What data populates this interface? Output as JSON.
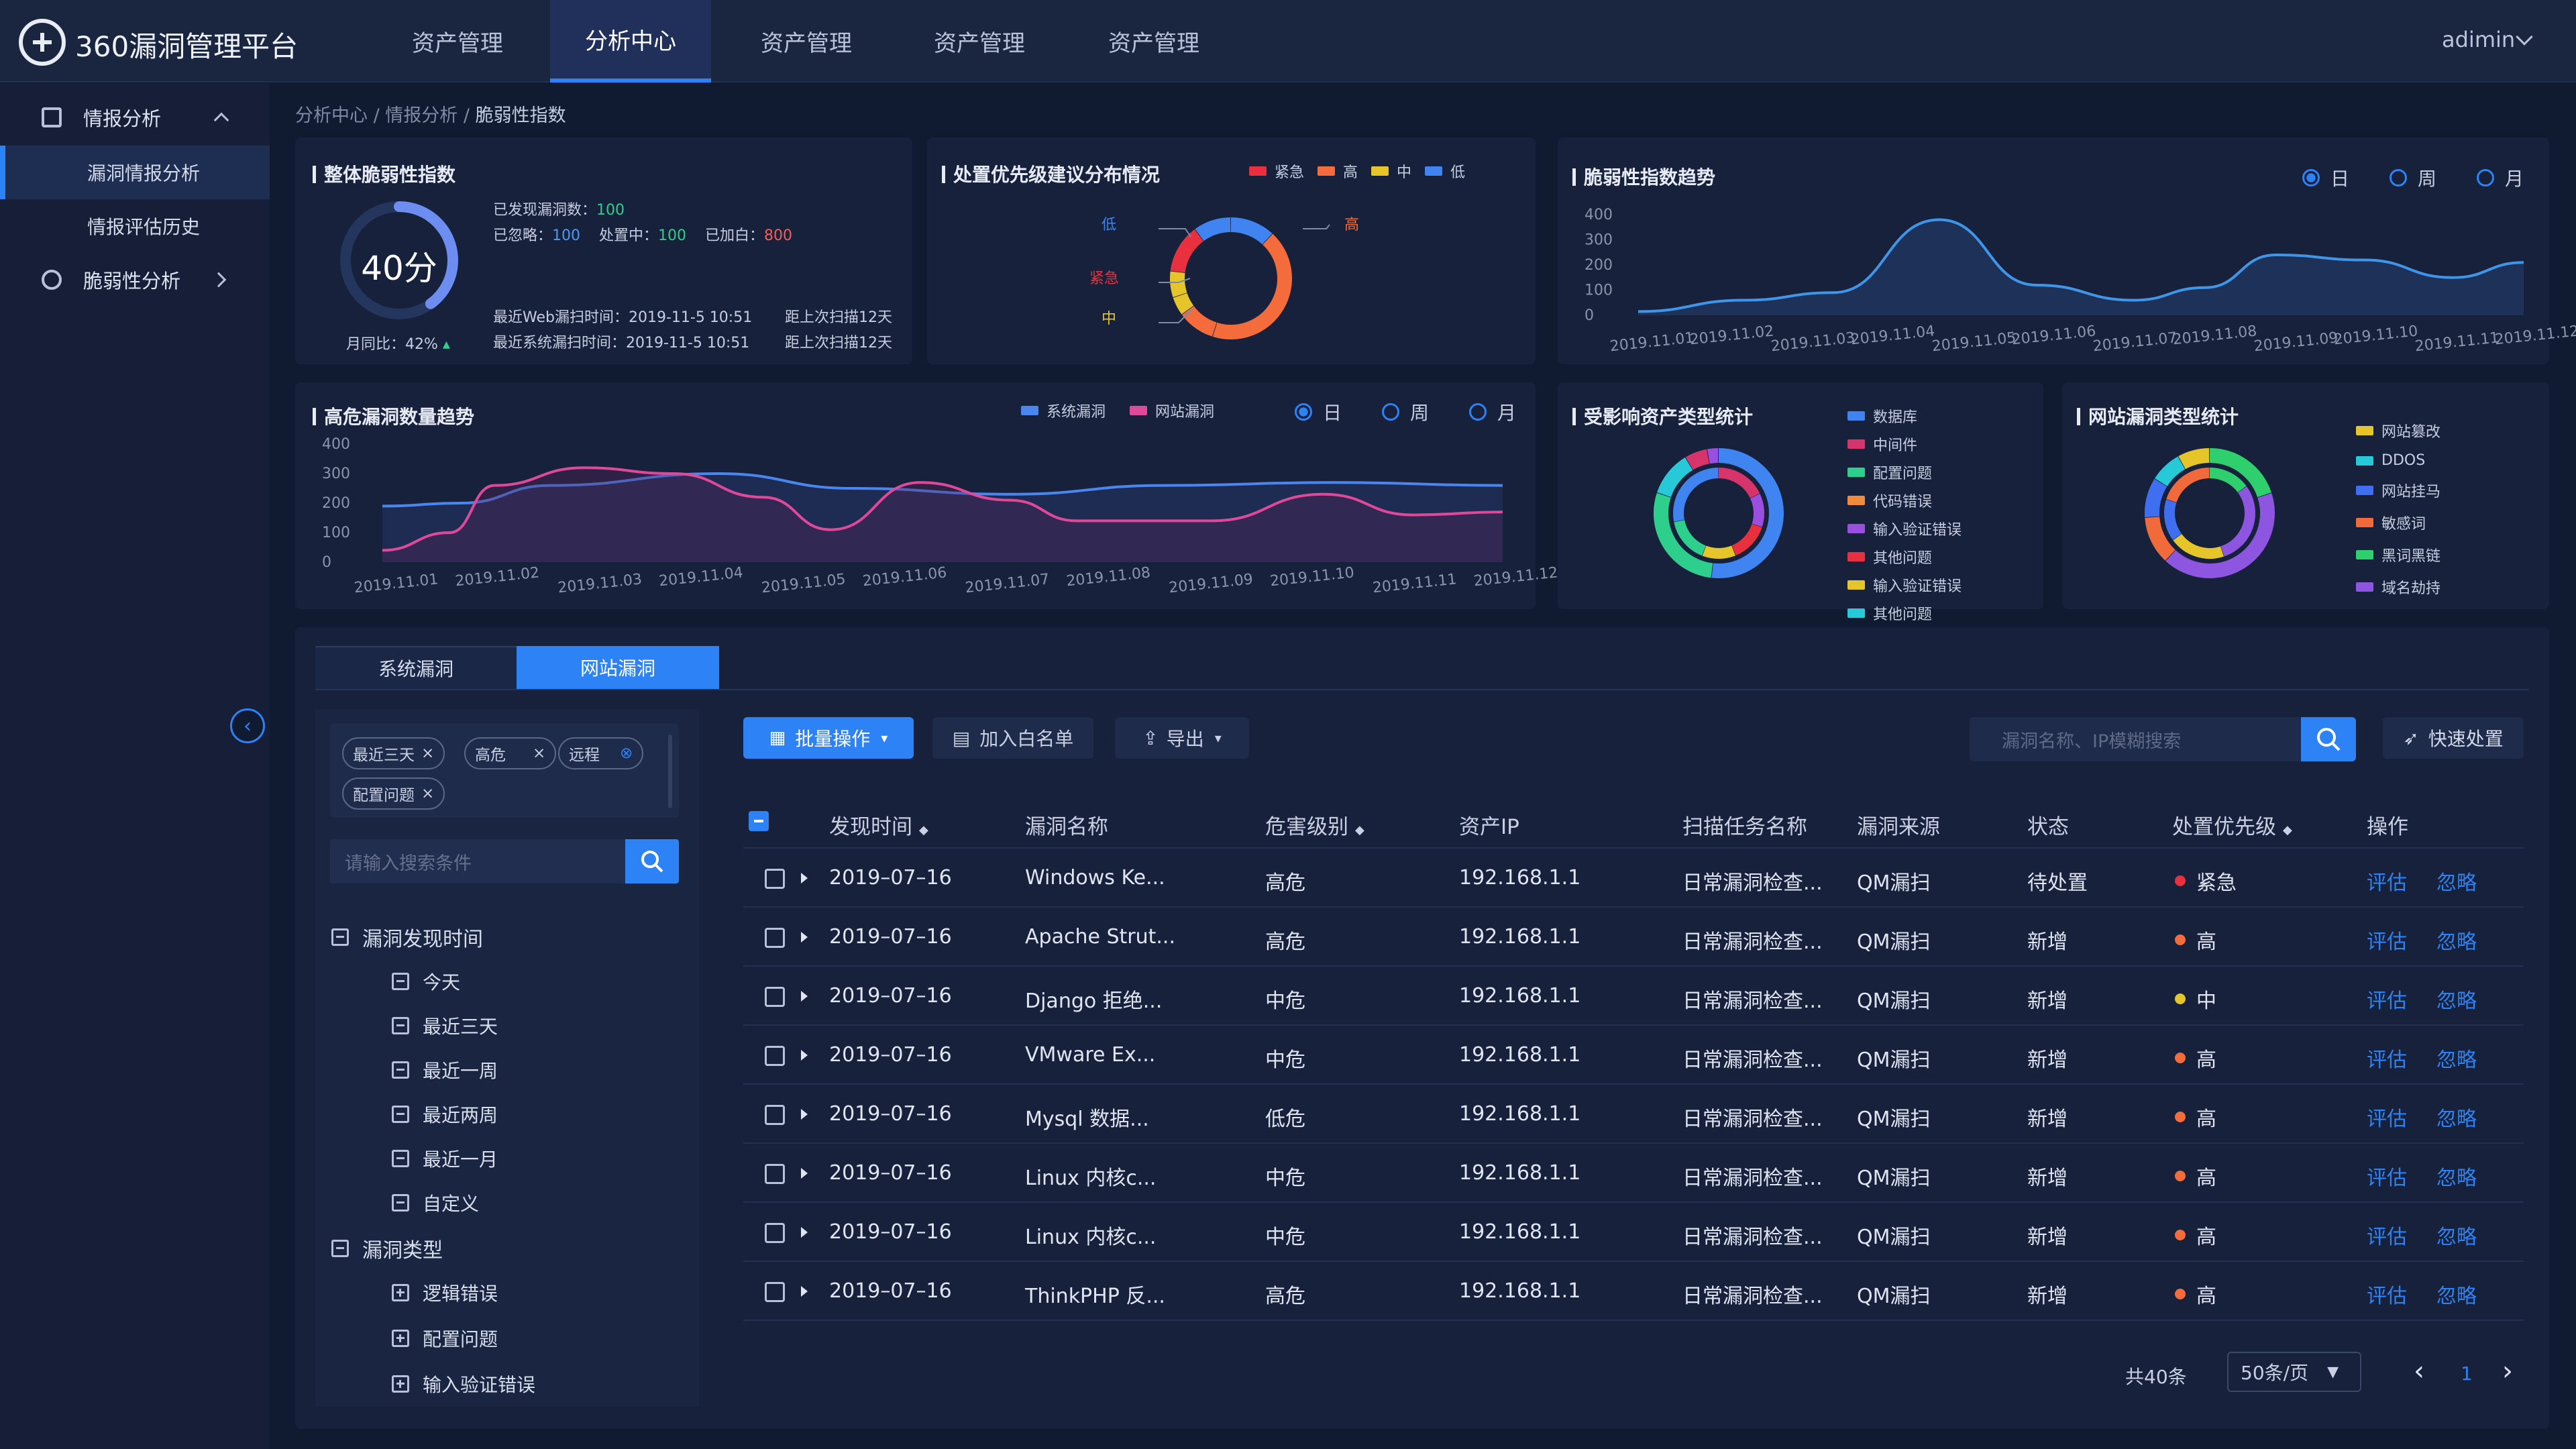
{
  "app": {
    "title": "360漏洞管理平台",
    "user": "adimin"
  },
  "nav": [
    {
      "label": "资产管理"
    },
    {
      "label": "分析中心"
    },
    {
      "label": "资产管理"
    },
    {
      "label": "资产管理"
    },
    {
      "label": "资产管理"
    }
  ],
  "sidebar": {
    "intel": "情报分析",
    "sub": [
      "漏洞情报分析",
      "情报评估历史"
    ],
    "vuln": "脆弱性分析"
  },
  "breadcrumb": {
    "a": "分析中心",
    "b": "情报分析",
    "c": "脆弱性指数",
    "sep": "/"
  },
  "overall": {
    "title": "整体脆弱性指数",
    "score": "40分",
    "score_value": 0.4,
    "mom": "月同比：42%",
    "found_label": "已发现漏洞数：",
    "found": "100",
    "ignored_label": "已忽略：",
    "ignored": "100",
    "handling_label": "处置中：",
    "handling": "100",
    "whitelisted_label": "已加白：",
    "whitelisted": "800",
    "web_scan": "最近Web漏扫时间：2019-11-5 10:51",
    "web_next": "距上次扫描12天",
    "sys_scan": "最近系统漏扫时间：2019-11-5 10:51",
    "sys_next": "距上次扫描12天"
  },
  "priority": {
    "title": "处置优先级建议分布情况",
    "legend": [
      {
        "name": "紧急",
        "color": "#e8303f"
      },
      {
        "name": "高",
        "color": "#f46b3c"
      },
      {
        "name": "中",
        "color": "#e6c52a"
      },
      {
        "name": "低",
        "color": "#3f84f0"
      }
    ],
    "labels": {
      "low": "低",
      "high": "高",
      "urgent": "紧急",
      "mid": "中"
    }
  },
  "trend": {
    "title": "脆弱性指数趋势",
    "periods": [
      "日",
      "周",
      "月"
    ],
    "yticks": [
      "400",
      "300",
      "200",
      "100",
      "0"
    ],
    "xticks": [
      "2019.11.01",
      "2019.11.02",
      "2019.11.03",
      "2019.11.04",
      "2019.11.05",
      "2019.11.06",
      "2019.11.07",
      "2019.11.08",
      "2019.11.09",
      "2019.11.10",
      "2019.11.11",
      "2019.11.12"
    ]
  },
  "high_risk": {
    "title": "高危漏洞数量趋势",
    "legend": [
      {
        "name": "系统漏洞",
        "color": "#4a86f0"
      },
      {
        "name": "网站漏洞",
        "color": "#e0489a"
      }
    ],
    "periods": [
      "日",
      "周",
      "月"
    ],
    "yticks": [
      "400",
      "300",
      "200",
      "100",
      "0"
    ],
    "xticks": [
      "2019.11.01",
      "2019.11.02",
      "2019.11.03",
      "2019.11.04",
      "2019.11.05",
      "2019.11.06",
      "2019.11.07",
      "2019.11.08",
      "2019.11.09",
      "2019.11.10",
      "2019.11.11",
      "2019.11.12"
    ]
  },
  "asset_types": {
    "title": "受影响资产类型统计",
    "legend": [
      {
        "name": "数据库",
        "color": "#3f84f0"
      },
      {
        "name": "中间件",
        "color": "#d8346c"
      },
      {
        "name": "配置问题",
        "color": "#2ecf8c"
      },
      {
        "name": "代码错误",
        "color": "#f08a3c"
      },
      {
        "name": "输入验证错误",
        "color": "#9b4fe0"
      },
      {
        "name": "其他问题",
        "color": "#e8303f"
      },
      {
        "name": "输入验证错误",
        "color": "#e6c52a"
      },
      {
        "name": "其他问题",
        "color": "#27c9d8"
      }
    ]
  },
  "site_types": {
    "title": "网站漏洞类型统计",
    "legend": [
      {
        "name": "网站篡改",
        "color": "#e6c52a"
      },
      {
        "name": "DDOS",
        "color": "#27c9d8"
      },
      {
        "name": "网站挂马",
        "color": "#3f6ff0"
      },
      {
        "name": "敏感词",
        "color": "#f06a3c"
      },
      {
        "name": "黑词黑链",
        "color": "#2ecf6c"
      },
      {
        "name": "域名劫持",
        "color": "#8e55e0"
      }
    ]
  },
  "tabs": [
    "系统漏洞",
    "网站漏洞"
  ],
  "filters": {
    "tags": [
      "最近三天",
      "高危",
      "远程",
      "配置问题"
    ],
    "search_placeholder": "请输入搜索条件",
    "tree_time": "漏洞发现时间",
    "time_items": [
      "今天",
      "最近三天",
      "最近一周",
      "最近两周",
      "最近一月",
      "自定义"
    ],
    "tree_type": "漏洞类型",
    "type_items": [
      "逻辑错误",
      "配置问题",
      "输入验证错误"
    ]
  },
  "toolbar": {
    "batch": "批量操作",
    "whitelist": "加入白名单",
    "export": "导出",
    "search_placeholder": "漏洞名称、IP模糊搜索",
    "quick": "快速处置"
  },
  "table": {
    "headers": [
      "发现时间",
      "漏洞名称",
      "危害级别",
      "资产IP",
      "扫描任务名称",
      "漏洞来源",
      "状态",
      "处置优先级",
      "操作"
    ],
    "rows": [
      {
        "time": "2019–07–16",
        "name": "Windows Ke...",
        "level": "高危",
        "ip": "192.168.1.1",
        "task": "日常漏洞检查...",
        "source": "QM漏扫",
        "status": "待处置",
        "priority": "紧急",
        "pcolor": "#e8303f",
        "eval": "评估",
        "ignore": "忽略"
      },
      {
        "time": "2019–07–16",
        "name": "Apache Strut...",
        "level": "高危",
        "ip": "192.168.1.1",
        "task": "日常漏洞检查...",
        "source": "QM漏扫",
        "status": "新增",
        "priority": "高",
        "pcolor": "#f46b3c",
        "eval": "评估",
        "ignore": "忽略"
      },
      {
        "time": "2019–07–16",
        "name": "Django 拒绝...",
        "level": "中危",
        "ip": "192.168.1.1",
        "task": "日常漏洞检查...",
        "source": "QM漏扫",
        "status": "新增",
        "priority": "中",
        "pcolor": "#e6c52a",
        "eval": "评估",
        "ignore": "忽略"
      },
      {
        "time": "2019–07–16",
        "name": "VMware Ex...",
        "level": "中危",
        "ip": "192.168.1.1",
        "task": "日常漏洞检查...",
        "source": "QM漏扫",
        "status": "新增",
        "priority": "高",
        "pcolor": "#f46b3c",
        "eval": "评估",
        "ignore": "忽略"
      },
      {
        "time": "2019–07–16",
        "name": "Mysql 数据...",
        "level": "低危",
        "ip": "192.168.1.1",
        "task": "日常漏洞检查...",
        "source": "QM漏扫",
        "status": "新增",
        "priority": "高",
        "pcolor": "#f46b3c",
        "eval": "评估",
        "ignore": "忽略"
      },
      {
        "time": "2019–07–16",
        "name": "Linux 内核c...",
        "level": "中危",
        "ip": "192.168.1.1",
        "task": "日常漏洞检查...",
        "source": "QM漏扫",
        "status": "新增",
        "priority": "高",
        "pcolor": "#f46b3c",
        "eval": "评估",
        "ignore": "忽略"
      },
      {
        "time": "2019–07–16",
        "name": "Linux 内核c...",
        "level": "中危",
        "ip": "192.168.1.1",
        "task": "日常漏洞检查...",
        "source": "QM漏扫",
        "status": "新增",
        "priority": "高",
        "pcolor": "#f46b3c",
        "eval": "评估",
        "ignore": "忽略"
      },
      {
        "time": "2019–07–16",
        "name": "ThinkPHP 反...",
        "level": "高危",
        "ip": "192.168.1.1",
        "task": "日常漏洞检查...",
        "source": "QM漏扫",
        "status": "新增",
        "priority": "高",
        "pcolor": "#f46b3c",
        "eval": "评估",
        "ignore": "忽略"
      }
    ]
  },
  "pagination": {
    "total": "共40条",
    "page_size": "50条/页",
    "current": "1"
  }
}
